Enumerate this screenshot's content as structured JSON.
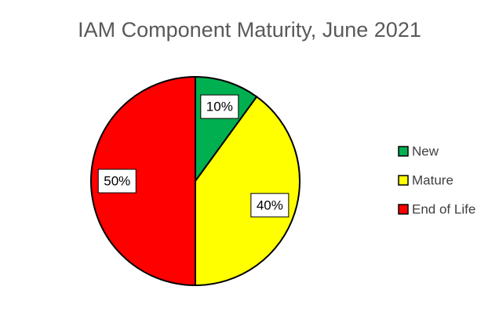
{
  "chart_data": {
    "type": "pie",
    "title": "IAM Component Maturity, June 2021",
    "categories": [
      "New",
      "Mature",
      "End of Life"
    ],
    "values": [
      10,
      40,
      50
    ],
    "value_labels": [
      "10%",
      "40%",
      "50%"
    ],
    "colors": [
      "#00b050",
      "#ffff00",
      "#ff0000"
    ],
    "legend": "right"
  }
}
